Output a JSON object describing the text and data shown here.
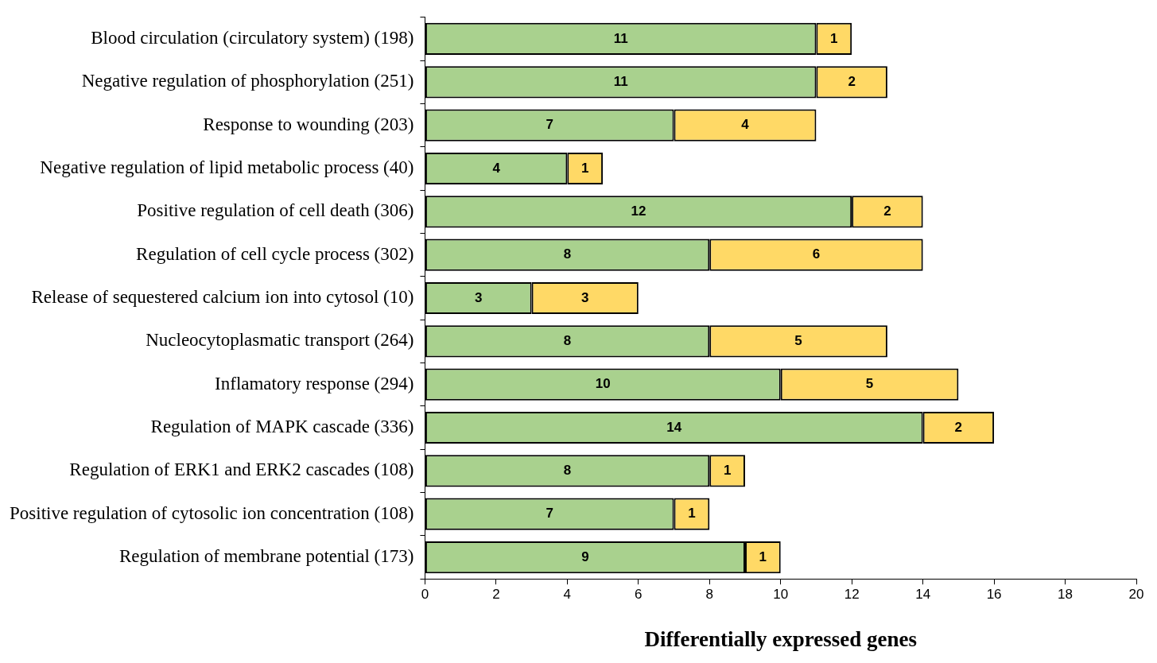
{
  "chart_data": {
    "type": "bar",
    "orientation": "horizontal",
    "stacked": true,
    "xlabel": "Differentially expressed genes",
    "categories": [
      "Blood circulation (circulatory system) (198)",
      "Negative regulation of phosphorylation (251)",
      "Response to wounding (203)",
      "Negative regulation of lipid metabolic process (40)",
      "Positive regulation of cell death (306)",
      "Regulation of cell cycle process (302)",
      "Release of sequestered calcium ion into cytosol (10)",
      "Nucleocytoplasmatic transport (264)",
      "Inflamatory response (294)",
      "Regulation of MAPK cascade (336)",
      "Regulation of ERK1 and ERK2 cascades (108)",
      "Positive regulation of cytosolic ion concentration (108)",
      "Regulation of membrane potential (173)"
    ],
    "series": [
      {
        "color": "#a9d18e",
        "values": [
          11,
          11,
          7,
          4,
          12,
          8,
          3,
          8,
          10,
          14,
          8,
          7,
          9
        ]
      },
      {
        "color": "#ffd966",
        "values": [
          1,
          2,
          4,
          1,
          2,
          6,
          3,
          5,
          5,
          2,
          1,
          1,
          1
        ]
      }
    ],
    "xlim": [
      0,
      20
    ],
    "xticks": [
      0,
      2,
      4,
      6,
      8,
      10,
      12,
      14,
      16,
      18,
      20
    ],
    "grid": false,
    "legend": false,
    "data_labels": true
  }
}
